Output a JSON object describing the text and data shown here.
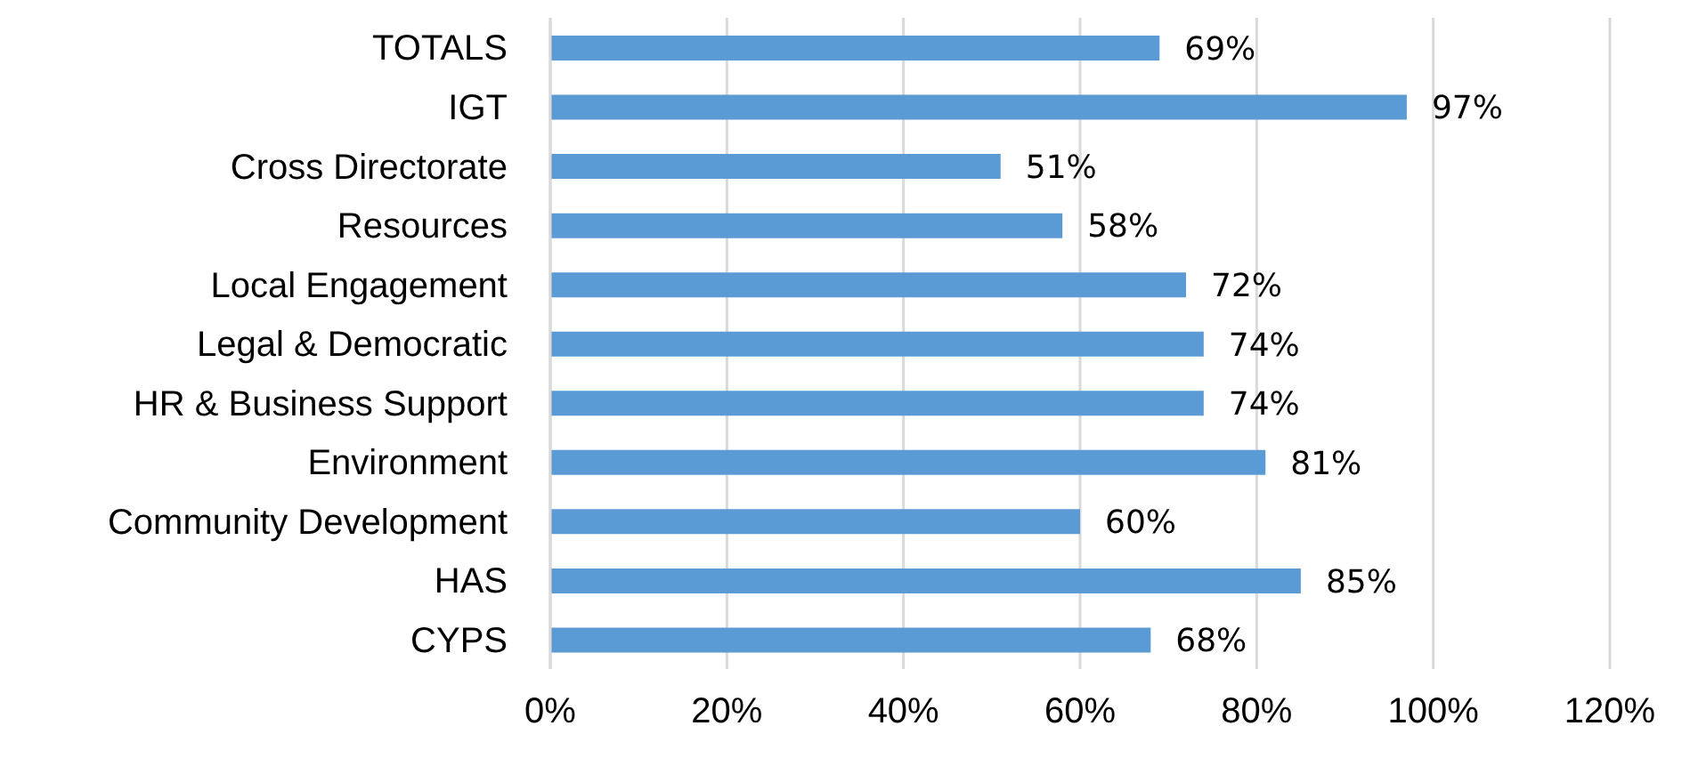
{
  "chart_data": {
    "type": "bar",
    "orientation": "horizontal",
    "categories": [
      "TOTALS",
      "IGT",
      "Cross Directorate",
      "Resources",
      "Local Engagement",
      "Legal & Democratic",
      "HR & Business Support",
      "Environment",
      "Community Development",
      "HAS",
      "CYPS"
    ],
    "values": [
      69,
      97,
      51,
      58,
      72,
      74,
      74,
      81,
      60,
      85,
      68
    ],
    "value_labels": [
      "69%",
      "97%",
      "51%",
      "58%",
      "72%",
      "74%",
      "74%",
      "81%",
      "60%",
      "85%",
      "68%"
    ],
    "color": "#5b9bd5",
    "xlim": [
      0,
      120
    ],
    "xticks": [
      {
        "value": 0,
        "label": "0%"
      },
      {
        "value": 20,
        "label": "20%"
      },
      {
        "value": 40,
        "label": "40%"
      },
      {
        "value": 60,
        "label": "60%"
      },
      {
        "value": 80,
        "label": "80%"
      },
      {
        "value": 100,
        "label": "100%"
      },
      {
        "value": 120,
        "label": "120%"
      }
    ],
    "grid": "x",
    "legend": false
  }
}
